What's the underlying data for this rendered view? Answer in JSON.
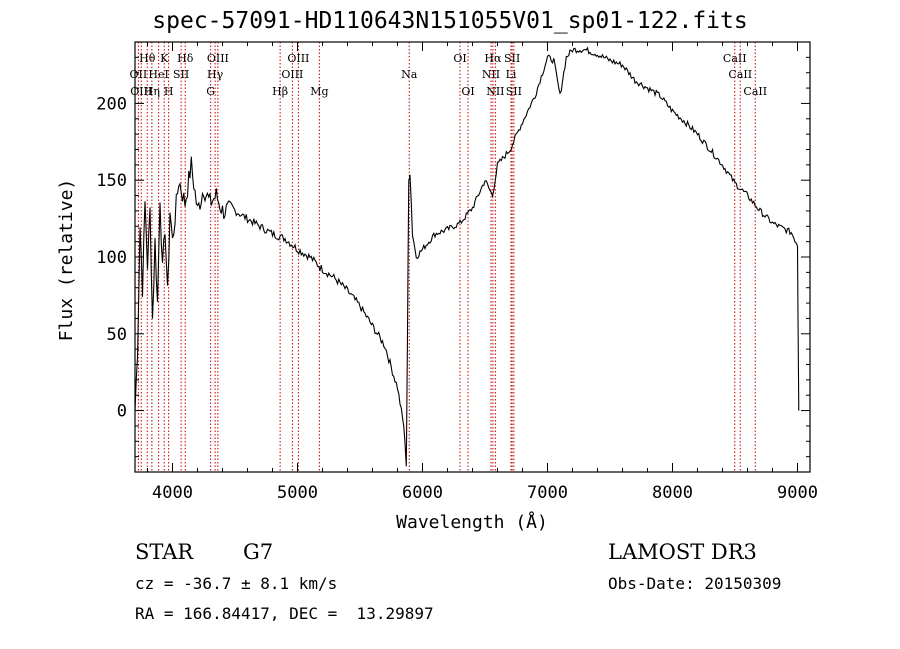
{
  "title": "spec-57091-HD110643N151055V01_sp01-122.fits",
  "footer": {
    "class_label": "STAR",
    "subclass": "G7",
    "survey": "LAMOST DR3",
    "redshift_line": "cz = -36.7 ± 8.1 km/s",
    "obs_date": "Obs-Date: 20150309",
    "coords": "RA = 166.84417, DEC =  13.29897"
  },
  "chart_data": {
    "type": "line",
    "title": "spec-57091-HD110643N151055V01_sp01-122.fits",
    "xlabel": "Wavelength (Å)",
    "ylabel": "Flux (relative)",
    "xlim": [
      3700,
      9100
    ],
    "ylim": [
      -40,
      240
    ],
    "xticks": [
      4000,
      5000,
      6000,
      7000,
      8000,
      9000
    ],
    "yticks": [
      0,
      50,
      100,
      150,
      200
    ],
    "series": [
      {
        "name": "flux",
        "x": [
          3700,
          3720,
          3740,
          3760,
          3780,
          3800,
          3820,
          3840,
          3860,
          3880,
          3900,
          3920,
          3940,
          3960,
          3980,
          4000,
          4050,
          4100,
          4150,
          4200,
          4250,
          4300,
          4350,
          4400,
          4500,
          4600,
          4700,
          4800,
          4900,
          5000,
          5100,
          5200,
          5300,
          5400,
          5500,
          5600,
          5700,
          5750,
          5800,
          5850,
          5870,
          5880,
          5890,
          5900,
          5920,
          5950,
          6000,
          6050,
          6100,
          6200,
          6300,
          6400,
          6500,
          6560,
          6600,
          6700,
          6800,
          6900,
          7000,
          7050,
          7100,
          7150,
          7200,
          7300,
          7400,
          7500,
          7600,
          7700,
          7800,
          7900,
          8000,
          8100,
          8200,
          8300,
          8400,
          8500,
          8600,
          8700,
          8800,
          8900,
          8950,
          9000,
          9010
        ],
        "y": [
          0,
          40,
          120,
          80,
          135,
          95,
          130,
          60,
          110,
          70,
          140,
          90,
          120,
          75,
          130,
          110,
          150,
          135,
          160,
          130,
          145,
          135,
          140,
          130,
          130,
          125,
          120,
          115,
          112,
          105,
          100,
          92,
          86,
          78,
          68,
          55,
          42,
          28,
          15,
          -10,
          -35,
          50,
          150,
          155,
          115,
          100,
          105,
          110,
          115,
          118,
          122,
          132,
          150,
          140,
          160,
          170,
          188,
          205,
          230,
          228,
          205,
          230,
          235,
          235,
          232,
          228,
          225,
          215,
          210,
          205,
          195,
          188,
          180,
          170,
          160,
          148,
          140,
          130,
          122,
          118,
          116,
          108,
          0
        ]
      }
    ],
    "spectral_lines": [
      {
        "name": "Hθ",
        "wavelength": 3798,
        "row": 1
      },
      {
        "name": "OII",
        "wavelength": 3727,
        "row": 2
      },
      {
        "name": "OIII",
        "wavelength": 3750,
        "row": 3
      },
      {
        "name": "Hη",
        "wavelength": 3835,
        "row": 3
      },
      {
        "name": "HeI",
        "wavelength": 3889,
        "row": 2
      },
      {
        "name": "K",
        "wavelength": 3934,
        "row": 1
      },
      {
        "name": "H",
        "wavelength": 3969,
        "row": 3
      },
      {
        "name": "SII",
        "wavelength": 4069,
        "row": 2
      },
      {
        "name": "Hδ",
        "wavelength": 4102,
        "row": 1
      },
      {
        "name": "G",
        "wavelength": 4305,
        "row": 3
      },
      {
        "name": "Hγ",
        "wavelength": 4341,
        "row": 2
      },
      {
        "name": "OIII",
        "wavelength": 4363,
        "row": 1
      },
      {
        "name": "Hβ",
        "wavelength": 4861,
        "row": 3
      },
      {
        "name": "OIII",
        "wavelength": 4959,
        "row": 2
      },
      {
        "name": "OIII",
        "wavelength": 5007,
        "row": 1
      },
      {
        "name": "Mg",
        "wavelength": 5175,
        "row": 3
      },
      {
        "name": "Na",
        "wavelength": 5894,
        "row": 2
      },
      {
        "name": "OI",
        "wavelength": 6300,
        "row": 1
      },
      {
        "name": "OI",
        "wavelength": 6364,
        "row": 3
      },
      {
        "name": "NII",
        "wavelength": 6548,
        "row": 2
      },
      {
        "name": "Hα",
        "wavelength": 6563,
        "row": 1
      },
      {
        "name": "NII",
        "wavelength": 6583,
        "row": 3
      },
      {
        "name": "SII",
        "wavelength": 6717,
        "row": 1
      },
      {
        "name": "Li",
        "wavelength": 6708,
        "row": 2
      },
      {
        "name": "SII",
        "wavelength": 6731,
        "row": 3
      },
      {
        "name": "CaII",
        "wavelength": 8498,
        "row": 1
      },
      {
        "name": "CaII",
        "wavelength": 8542,
        "row": 2
      },
      {
        "name": "CaII",
        "wavelength": 8662,
        "row": 3
      }
    ],
    "line_color": "#000000",
    "marker_color": "#cc0000"
  }
}
